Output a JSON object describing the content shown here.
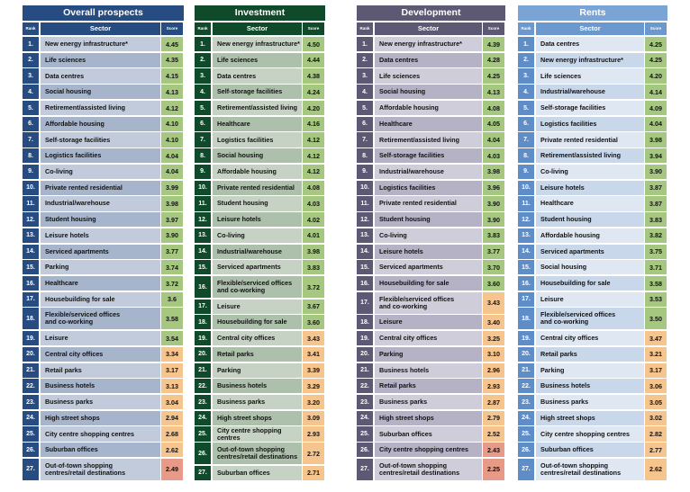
{
  "col_labels": {
    "rank": "Rank",
    "sector": "Sector",
    "score": "Score"
  },
  "panels": [
    {
      "title": "Overall prospects",
      "colors": {
        "title": "#264c82",
        "rank": "#264c82",
        "hdr": "#264c82",
        "sector": [
          "#c1cbdc",
          "#a6b5cc"
        ]
      },
      "rows": [
        {
          "rank": "1.",
          "sector": "New energy infrastructure*",
          "score": "4.45",
          "band": "green"
        },
        {
          "rank": "2.",
          "sector": "Life sciences",
          "score": "4.35",
          "band": "green"
        },
        {
          "rank": "3.",
          "sector": "Data centres",
          "score": "4.15",
          "band": "green"
        },
        {
          "rank": "4.",
          "sector": "Social housing",
          "score": "4.13",
          "band": "green"
        },
        {
          "rank": "5.",
          "sector": "Retirement/assisted living",
          "score": "4.12",
          "band": "green"
        },
        {
          "rank": "6.",
          "sector": "Affordable housing",
          "score": "4.10",
          "band": "green"
        },
        {
          "rank": "7.",
          "sector": "Self-storage facilities",
          "score": "4.10",
          "band": "green"
        },
        {
          "rank": "8.",
          "sector": "Logistics facilities",
          "score": "4.04",
          "band": "green"
        },
        {
          "rank": "9.",
          "sector": "Co-living",
          "score": "4.04",
          "band": "green"
        },
        {
          "rank": "10.",
          "sector": "Private rented residential",
          "score": "3.99",
          "band": "green"
        },
        {
          "rank": "11.",
          "sector": "Industrial/warehouse",
          "score": "3.98",
          "band": "green"
        },
        {
          "rank": "12.",
          "sector": "Student housing",
          "score": "3.97",
          "band": "green"
        },
        {
          "rank": "13.",
          "sector": "Leisure hotels",
          "score": "3.90",
          "band": "green"
        },
        {
          "rank": "14.",
          "sector": "Serviced apartments",
          "score": "3.77",
          "band": "green"
        },
        {
          "rank": "15.",
          "sector": "Parking",
          "score": "3.74",
          "band": "green"
        },
        {
          "rank": "16.",
          "sector": "Healthcare",
          "score": "3.72",
          "band": "green"
        },
        {
          "rank": "17.",
          "sector": "Housebuilding for sale",
          "score": "3.6",
          "band": "green"
        },
        {
          "rank": "18.",
          "sector": "Flexible/serviced offices\nand co-working",
          "score": "3.58",
          "band": "green",
          "tall": true
        },
        {
          "rank": "19.",
          "sector": "Leisure",
          "score": "3.54",
          "band": "green"
        },
        {
          "rank": "20.",
          "sector": "Central city offices",
          "score": "3.34",
          "band": "orange"
        },
        {
          "rank": "21.",
          "sector": "Retail parks",
          "score": "3.17",
          "band": "orange"
        },
        {
          "rank": "22.",
          "sector": "Business hotels",
          "score": "3.13",
          "band": "orange"
        },
        {
          "rank": "23.",
          "sector": "Business parks",
          "score": "3.04",
          "band": "orange"
        },
        {
          "rank": "24.",
          "sector": "High street shops",
          "score": "2.94",
          "band": "orange"
        },
        {
          "rank": "25.",
          "sector": "City centre shopping centres",
          "score": "2.68",
          "band": "orange"
        },
        {
          "rank": "26.",
          "sector": "Suburban offices",
          "score": "2.62",
          "band": "orange"
        },
        {
          "rank": "27.",
          "sector": "Out-of-town shopping\ncentres/retail destinations",
          "score": "2.49",
          "band": "red",
          "tall": true
        }
      ]
    },
    {
      "title": "Investment",
      "colors": {
        "title": "#0f4a2a",
        "rank": "#0f4a2a",
        "hdr": "#0f4a2a",
        "sector": [
          "#c6d3c4",
          "#adc0ab"
        ]
      },
      "rows": [
        {
          "rank": "1.",
          "sector": "New energy infrastructure*",
          "score": "4.50",
          "band": "green"
        },
        {
          "rank": "2.",
          "sector": "Life sciences",
          "score": "4.44",
          "band": "green"
        },
        {
          "rank": "3.",
          "sector": "Data centres",
          "score": "4.38",
          "band": "green"
        },
        {
          "rank": "4.",
          "sector": "Self-storage facilities",
          "score": "4.24",
          "band": "green"
        },
        {
          "rank": "5.",
          "sector": "Retirement/assisted living",
          "score": "4.20",
          "band": "green"
        },
        {
          "rank": "6.",
          "sector": "Healthcare",
          "score": "4.16",
          "band": "green"
        },
        {
          "rank": "7.",
          "sector": "Logistics facilities",
          "score": "4.12",
          "band": "green"
        },
        {
          "rank": "8.",
          "sector": "Social housing",
          "score": "4.12",
          "band": "green"
        },
        {
          "rank": "9.",
          "sector": "Affordable housing",
          "score": "4.12",
          "band": "green"
        },
        {
          "rank": "10.",
          "sector": "Private rented residential",
          "score": "4.08",
          "band": "green"
        },
        {
          "rank": "11.",
          "sector": "Student housing",
          "score": "4.03",
          "band": "green"
        },
        {
          "rank": "12.",
          "sector": "Leisure hotels",
          "score": "4.02",
          "band": "green"
        },
        {
          "rank": "13.",
          "sector": "Co-living",
          "score": "4.01",
          "band": "green"
        },
        {
          "rank": "14.",
          "sector": "Industrial/warehouse",
          "score": "3.98",
          "band": "green"
        },
        {
          "rank": "15.",
          "sector": "Serviced apartments",
          "score": "3.83",
          "band": "green"
        },
        {
          "rank": "16.",
          "sector": "Flexible/serviced offices\nand co-working",
          "score": "3.72",
          "band": "green",
          "tall": true
        },
        {
          "rank": "17.",
          "sector": "Leisure",
          "score": "3.67",
          "band": "green"
        },
        {
          "rank": "18.",
          "sector": "Housebuilding for sale",
          "score": "3.60",
          "band": "green"
        },
        {
          "rank": "19.",
          "sector": "Central city offices",
          "score": "3.43",
          "band": "orange"
        },
        {
          "rank": "20.",
          "sector": "Retail parks",
          "score": "3.41",
          "band": "orange"
        },
        {
          "rank": "21.",
          "sector": "Parking",
          "score": "3.39",
          "band": "orange"
        },
        {
          "rank": "22.",
          "sector": "Business hotels",
          "score": "3.29",
          "band": "orange"
        },
        {
          "rank": "23.",
          "sector": "Business parks",
          "score": "3.20",
          "band": "orange"
        },
        {
          "rank": "24.",
          "sector": "High street shops",
          "score": "3.09",
          "band": "orange"
        },
        {
          "rank": "25.",
          "sector": "City centre shopping centres",
          "score": "2.93",
          "band": "orange"
        },
        {
          "rank": "26.",
          "sector": "Out-of-town shopping\ncentres/retail destinations",
          "score": "2.72",
          "band": "orange",
          "tall": true
        },
        {
          "rank": "27.",
          "sector": "Suburban offices",
          "score": "2.71",
          "band": "orange"
        }
      ]
    },
    {
      "title": "Development",
      "colors": {
        "title": "#5d5873",
        "rank": "#5d5873",
        "hdr": "#5d5873",
        "sector": [
          "#cfcdd9",
          "#b5b2c6"
        ]
      },
      "rows": [
        {
          "rank": "1.",
          "sector": "New energy infrastructure*",
          "score": "4.39",
          "band": "green"
        },
        {
          "rank": "2.",
          "sector": "Data centres",
          "score": "4.28",
          "band": "green"
        },
        {
          "rank": "3.",
          "sector": "Life sciences",
          "score": "4.25",
          "band": "green"
        },
        {
          "rank": "4.",
          "sector": "Social housing",
          "score": "4.13",
          "band": "green"
        },
        {
          "rank": "5.",
          "sector": "Affordable housing",
          "score": "4.08",
          "band": "green"
        },
        {
          "rank": "6.",
          "sector": "Healthcare",
          "score": "4.05",
          "band": "green"
        },
        {
          "rank": "7.",
          "sector": "Retirement/assisted living",
          "score": "4.04",
          "band": "green"
        },
        {
          "rank": "8.",
          "sector": "Self-storage facilities",
          "score": "4.03",
          "band": "green"
        },
        {
          "rank": "9.",
          "sector": "Industrial/warehouse",
          "score": "3.98",
          "band": "green"
        },
        {
          "rank": "10.",
          "sector": "Logistics facilities",
          "score": "3.96",
          "band": "green"
        },
        {
          "rank": "11.",
          "sector": "Private rented residential",
          "score": "3.90",
          "band": "green"
        },
        {
          "rank": "12.",
          "sector": "Student housing",
          "score": "3.90",
          "band": "green"
        },
        {
          "rank": "13.",
          "sector": "Co-living",
          "score": "3.83",
          "band": "green"
        },
        {
          "rank": "14.",
          "sector": "Leisure hotels",
          "score": "3.77",
          "band": "green"
        },
        {
          "rank": "15.",
          "sector": "Serviced apartments",
          "score": "3.70",
          "band": "green"
        },
        {
          "rank": "16.",
          "sector": "Housebuilding for sale",
          "score": "3.60",
          "band": "green"
        },
        {
          "rank": "17.",
          "sector": "Flexible/serviced offices\nand co-working",
          "score": "3.43",
          "band": "orange",
          "tall": true
        },
        {
          "rank": "18.",
          "sector": "Leisure",
          "score": "3.40",
          "band": "orange"
        },
        {
          "rank": "19.",
          "sector": "Central city offices",
          "score": "3.25",
          "band": "orange"
        },
        {
          "rank": "20.",
          "sector": "Parking",
          "score": "3.10",
          "band": "orange"
        },
        {
          "rank": "21.",
          "sector": "Business hotels",
          "score": "2.96",
          "band": "orange"
        },
        {
          "rank": "22.",
          "sector": "Retail parks",
          "score": "2.93",
          "band": "orange"
        },
        {
          "rank": "23.",
          "sector": "Business parks",
          "score": "2.87",
          "band": "orange"
        },
        {
          "rank": "24.",
          "sector": "High street shops",
          "score": "2.79",
          "band": "orange"
        },
        {
          "rank": "25.",
          "sector": "Suburban offices",
          "score": "2.52",
          "band": "orange"
        },
        {
          "rank": "26.",
          "sector": "City centre shopping centres",
          "score": "2.43",
          "band": "red"
        },
        {
          "rank": "27.",
          "sector": "Out-of-town shopping\ncentres/retail destinations",
          "score": "2.25",
          "band": "red",
          "tall": true
        }
      ]
    },
    {
      "title": "Rents",
      "colors": {
        "title": "#7aa4d6",
        "rank": "#5f8dc8",
        "hdr": "#6b98cf",
        "sector": [
          "#dfe7f3",
          "#c9d7ea"
        ]
      },
      "rows": [
        {
          "rank": "1.",
          "sector": "Data centres",
          "score": "4.25",
          "band": "green"
        },
        {
          "rank": "2.",
          "sector": "New energy infrastructure*",
          "score": "4.25",
          "band": "green"
        },
        {
          "rank": "3.",
          "sector": "Life sciences",
          "score": "4.20",
          "band": "green"
        },
        {
          "rank": "4.",
          "sector": "Industrial/warehouse",
          "score": "4.14",
          "band": "green"
        },
        {
          "rank": "5.",
          "sector": "Self-storage facilities",
          "score": "4.09",
          "band": "green"
        },
        {
          "rank": "6.",
          "sector": "Logistics facilities",
          "score": "4.04",
          "band": "green"
        },
        {
          "rank": "7.",
          "sector": "Private rented residential",
          "score": "3.98",
          "band": "green"
        },
        {
          "rank": "8.",
          "sector": "Retirement/assisted living",
          "score": "3.94",
          "band": "green"
        },
        {
          "rank": "9.",
          "sector": "Co-living",
          "score": "3.90",
          "band": "green"
        },
        {
          "rank": "10.",
          "sector": "Leisure hotels",
          "score": "3.87",
          "band": "green"
        },
        {
          "rank": "11.",
          "sector": "Healthcare",
          "score": "3.87",
          "band": "green"
        },
        {
          "rank": "12.",
          "sector": "Student housing",
          "score": "3.83",
          "band": "green"
        },
        {
          "rank": "13.",
          "sector": "Affordable housing",
          "score": "3.82",
          "band": "green"
        },
        {
          "rank": "14.",
          "sector": "Serviced apartments",
          "score": "3.75",
          "band": "green"
        },
        {
          "rank": "15.",
          "sector": "Social housing",
          "score": "3.71",
          "band": "green"
        },
        {
          "rank": "16.",
          "sector": "Housebuilding for sale",
          "score": "3.58",
          "band": "green"
        },
        {
          "rank": "17.",
          "sector": "Leisure",
          "score": "3.53",
          "band": "green"
        },
        {
          "rank": "18.",
          "sector": "Flexible/serviced offices\nand co-working",
          "score": "3.50",
          "band": "green",
          "tall": true
        },
        {
          "rank": "19.",
          "sector": "Central city offices",
          "score": "3.47",
          "band": "orange"
        },
        {
          "rank": "20.",
          "sector": "Retail parks",
          "score": "3.21",
          "band": "orange"
        },
        {
          "rank": "21.",
          "sector": "Parking",
          "score": "3.17",
          "band": "orange"
        },
        {
          "rank": "22.",
          "sector": "Business hotels",
          "score": "3.06",
          "band": "orange"
        },
        {
          "rank": "23.",
          "sector": "Business parks",
          "score": "3.05",
          "band": "orange"
        },
        {
          "rank": "24.",
          "sector": "High street shops",
          "score": "3.02",
          "band": "orange"
        },
        {
          "rank": "25.",
          "sector": "City centre shopping centres",
          "score": "2.82",
          "band": "orange"
        },
        {
          "rank": "26.",
          "sector": "Suburban offices",
          "score": "2.77",
          "band": "orange"
        },
        {
          "rank": "27.",
          "sector": "Out-of-town shopping\ncentres/retail destinations",
          "score": "2.62",
          "band": "orange",
          "tall": true
        }
      ]
    }
  ]
}
